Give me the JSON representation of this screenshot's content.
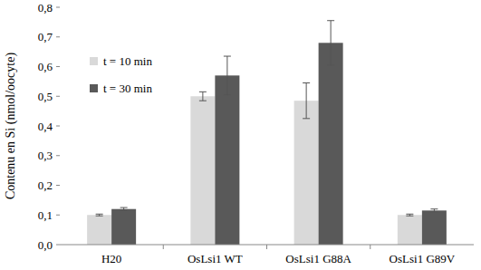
{
  "chart_data": {
    "type": "bar",
    "y_label": "Contenu en Si (nmol/oocyte)",
    "categories": [
      "H20",
      "OsLsi1 WT",
      "OsLsi1 G88A",
      "OsLsi1 G89V"
    ],
    "series": [
      {
        "name": "t = 10 min",
        "color": "#d9d9d9",
        "values": [
          0.1,
          0.5,
          0.485,
          0.1
        ],
        "errors": [
          0.003,
          0.015,
          0.06,
          0.003
        ]
      },
      {
        "name": "t = 30 min",
        "color": "#595959",
        "values": [
          0.12,
          0.57,
          0.68,
          0.115
        ],
        "errors": [
          0.005,
          0.065,
          0.075,
          0.005
        ]
      }
    ],
    "ylim": [
      0,
      0.8
    ],
    "yticks": [
      {
        "value": 0,
        "label": "0,0"
      },
      {
        "value": 0.1,
        "label": "0,1"
      },
      {
        "value": 0.2,
        "label": "0,2"
      },
      {
        "value": 0.3,
        "label": "0,3"
      },
      {
        "value": 0.4,
        "label": "0,4"
      },
      {
        "value": 0.5,
        "label": "0,5"
      },
      {
        "value": 0.6,
        "label": "0,6"
      },
      {
        "value": 0.7,
        "label": "0,7"
      },
      {
        "value": 0.8,
        "label": "0,8"
      }
    ],
    "grid": false,
    "legend": "upper left"
  }
}
